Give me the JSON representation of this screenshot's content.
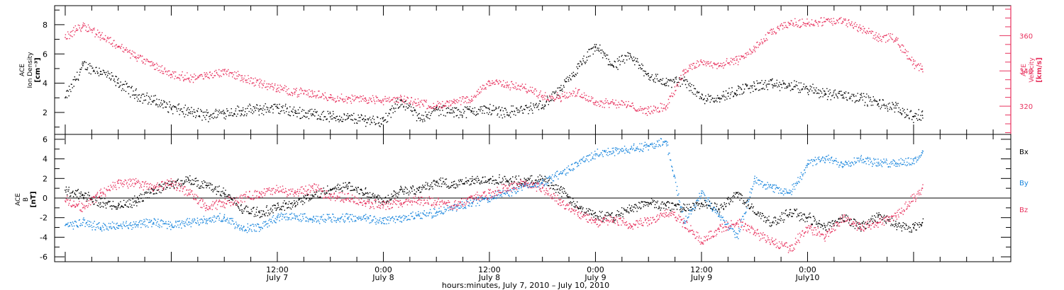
{
  "colors": {
    "black": "#000000",
    "red": "#e8335f",
    "blue": "#1a86dd"
  },
  "chart_data": [
    {
      "type": "scatter",
      "panel": "top",
      "ylabel_left": [
        "ACE",
        "Ion Density",
        "[cm⁻³]"
      ],
      "ylabel_right": [
        "ACE",
        "Velocity",
        "[km/s]"
      ],
      "ylim_left": [
        0.5,
        9.3
      ],
      "ylim_right": [
        304,
        377
      ],
      "left_ticks": [
        2,
        4,
        6,
        8
      ],
      "right_ticks": [
        320,
        340,
        360
      ],
      "grid": false,
      "series": [
        {
          "key": "density",
          "axis": "left",
          "color": "#000000",
          "x": [
            -12,
            -10,
            -8,
            -6,
            -4,
            -2,
            0,
            2,
            4,
            6,
            8,
            10,
            12,
            14,
            16,
            18,
            20,
            22,
            24,
            26,
            28,
            30,
            32,
            34,
            36,
            38,
            40,
            42,
            44,
            46,
            48,
            50,
            52,
            54,
            56,
            58,
            60,
            62,
            64,
            66,
            68,
            70,
            72,
            74,
            76,
            78,
            80,
            82,
            84,
            85
          ],
          "y": [
            3.0,
            5.2,
            4.8,
            4.0,
            3.2,
            2.8,
            2.3,
            2.0,
            1.8,
            2.0,
            2.1,
            2.2,
            2.3,
            2.0,
            1.9,
            1.7,
            1.6,
            1.5,
            1.4,
            2.8,
            1.6,
            2.2,
            2.0,
            2.1,
            2.2,
            2.0,
            2.2,
            2.5,
            3.5,
            5.0,
            6.5,
            5.2,
            5.8,
            4.5,
            4.0,
            4.2,
            3.0,
            3.0,
            3.5,
            3.8,
            3.9,
            3.8,
            3.6,
            3.3,
            3.2,
            3.0,
            2.6,
            2.3,
            1.7,
            1.8
          ]
        },
        {
          "key": "velocity",
          "axis": "right",
          "color": "#e8335f",
          "x": [
            -12,
            -10,
            -8,
            -6,
            -4,
            -2,
            0,
            2,
            4,
            6,
            8,
            10,
            12,
            14,
            16,
            18,
            20,
            22,
            24,
            26,
            28,
            30,
            32,
            34,
            36,
            38,
            40,
            42,
            44,
            46,
            48,
            50,
            52,
            54,
            56,
            58,
            60,
            62,
            64,
            66,
            68,
            70,
            72,
            74,
            76,
            78,
            80,
            82,
            84,
            85
          ],
          "y": [
            359,
            366,
            360,
            354,
            348,
            343,
            338,
            336,
            337,
            340,
            336,
            333,
            330,
            328,
            327,
            325,
            324,
            324,
            323,
            324,
            322,
            320,
            322,
            324,
            334,
            332,
            330,
            326,
            325,
            328,
            322,
            322,
            320,
            317,
            320,
            340,
            345,
            343,
            346,
            353,
            362,
            367,
            367,
            368,
            368,
            364,
            359,
            358,
            344,
            341
          ]
        }
      ]
    },
    {
      "type": "scatter",
      "panel": "bottom",
      "ylabel": [
        "ACE",
        "B",
        "[nT]"
      ],
      "ylim": [
        -6.5,
        6.5
      ],
      "yticks": [
        -6,
        -4,
        -2,
        0,
        2,
        4,
        6
      ],
      "zero_line": true,
      "grid": false,
      "legend": [
        "Bx",
        "By",
        "Bz"
      ],
      "legend_placement": "right",
      "series": [
        {
          "key": "Bx",
          "name": "Bx",
          "color": "#000000",
          "x": [
            -12,
            -10,
            -8,
            -6,
            -4,
            -2,
            0,
            2,
            4,
            6,
            8,
            10,
            12,
            14,
            16,
            18,
            20,
            22,
            24,
            26,
            28,
            30,
            32,
            34,
            36,
            38,
            40,
            42,
            44,
            46,
            48,
            50,
            52,
            54,
            56,
            58,
            60,
            62,
            64,
            66,
            68,
            70,
            72,
            74,
            76,
            78,
            80,
            82,
            84,
            85
          ],
          "y": [
            0.8,
            0.3,
            -0.5,
            -0.8,
            -0.3,
            0.8,
            1.4,
            1.8,
            1.3,
            0.5,
            -1.2,
            -1.5,
            -1.0,
            -0.5,
            0.2,
            0.9,
            1.2,
            0.5,
            -0.3,
            0.9,
            0.8,
            1.6,
            1.4,
            1.7,
            1.9,
            1.8,
            1.6,
            2.0,
            0.8,
            -1.0,
            -1.8,
            -2.0,
            -1.0,
            -0.5,
            -0.8,
            -1.0,
            -0.6,
            -1.2,
            0.5,
            -1.5,
            -2.5,
            -1.5,
            -2.0,
            -3.0,
            -2.0,
            -3.0,
            -1.8,
            -2.8,
            -3.0,
            -2.5
          ]
        },
        {
          "key": "By",
          "name": "By",
          "color": "#1a86dd",
          "x": [
            -12,
            -10,
            -8,
            -6,
            -4,
            -2,
            0,
            2,
            4,
            6,
            8,
            10,
            12,
            14,
            16,
            18,
            20,
            22,
            24,
            26,
            28,
            30,
            32,
            34,
            36,
            38,
            40,
            42,
            44,
            46,
            48,
            50,
            52,
            54,
            56,
            58,
            60,
            62,
            64,
            66,
            68,
            70,
            72,
            74,
            76,
            78,
            80,
            82,
            84,
            85
          ],
          "y": [
            -2.8,
            -2.5,
            -3.0,
            -2.8,
            -2.7,
            -2.5,
            -2.8,
            -2.5,
            -2.3,
            -2.0,
            -3.2,
            -3.0,
            -2.0,
            -1.8,
            -2.2,
            -2.0,
            -2.0,
            -2.1,
            -2.3,
            -2.0,
            -1.8,
            -1.5,
            -1.0,
            -0.5,
            0.0,
            0.5,
            1.2,
            1.5,
            2.5,
            3.5,
            4.5,
            4.8,
            5.0,
            5.3,
            5.8,
            -2.5,
            0.5,
            -1.8,
            -4.0,
            2.0,
            1.0,
            0.5,
            3.5,
            4.0,
            3.5,
            4.0,
            3.5,
            3.6,
            3.8,
            4.6
          ]
        },
        {
          "key": "Bz",
          "name": "Bz",
          "color": "#e8335f",
          "x": [
            -12,
            -10,
            -8,
            -6,
            -4,
            -2,
            0,
            2,
            4,
            6,
            8,
            10,
            12,
            14,
            16,
            18,
            20,
            22,
            24,
            26,
            28,
            30,
            32,
            34,
            36,
            38,
            40,
            42,
            44,
            46,
            48,
            50,
            52,
            54,
            56,
            58,
            60,
            62,
            64,
            66,
            68,
            70,
            72,
            74,
            76,
            78,
            80,
            82,
            84,
            85
          ],
          "y": [
            -0.3,
            -1.0,
            0.5,
            1.5,
            1.5,
            1.0,
            1.5,
            0.5,
            -1.0,
            -0.5,
            0.0,
            0.5,
            0.8,
            0.5,
            1.0,
            0.2,
            0.0,
            -0.5,
            -0.8,
            -0.5,
            -0.2,
            -0.5,
            -0.8,
            0.0,
            0.5,
            1.0,
            1.5,
            1.0,
            -0.5,
            -1.5,
            -2.5,
            -2.3,
            -2.8,
            -2.3,
            -1.5,
            -2.5,
            -4.5,
            -3.2,
            -2.5,
            -3.5,
            -4.5,
            -5.2,
            -3.0,
            -4.0,
            -2.0,
            -3.0,
            -2.5,
            -1.8,
            0.0,
            1.0
          ]
        }
      ]
    }
  ],
  "time_axis": {
    "xlim": [
      -13.2,
      95
    ],
    "tick_labels": [
      {
        "hour": 12,
        "time": "12:00",
        "date": "July 7"
      },
      {
        "hour": 24,
        "time": "0:00",
        "date": "July 8"
      },
      {
        "hour": 36,
        "time": "12:00",
        "date": "July 8"
      },
      {
        "hour": 48,
        "time": "0:00",
        "date": "July 9"
      },
      {
        "hour": 60,
        "time": "12:00",
        "date": "July 9"
      },
      {
        "hour": 72,
        "time": "0:00",
        "date": "July10"
      }
    ],
    "title": "hours:minutes, July  7, 2010 – July 10, 2010"
  }
}
